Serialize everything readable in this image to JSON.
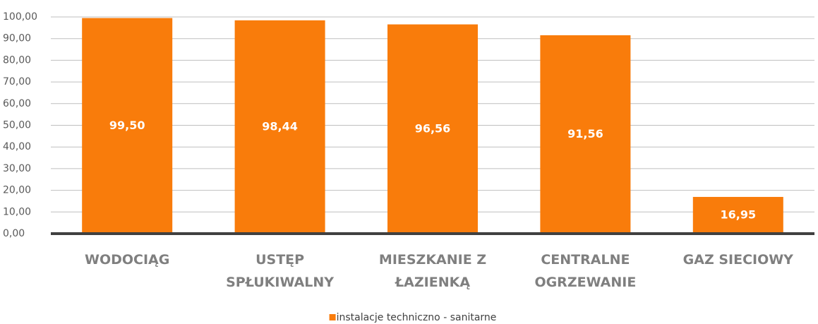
{
  "chart_data": {
    "type": "bar",
    "categories": [
      "WODOCIĄG",
      "USTĘP SPŁUKIWALNY",
      "MIESZKANIE Z ŁAZIENKĄ",
      "CENTRALNE OGRZEWANIE",
      "GAZ SIECIOWY"
    ],
    "series": [
      {
        "name": "instalacje techniczno - sanitarne",
        "color": "#f97c0b",
        "values": [
          99.5,
          98.44,
          96.56,
          91.56,
          16.95
        ],
        "value_labels": [
          "99,50",
          "98,44",
          "96,56",
          "91,56",
          "16,95"
        ]
      }
    ],
    "ylim": [
      0,
      100
    ],
    "yticks": [
      {
        "value": 0,
        "label": "0,00"
      },
      {
        "value": 10,
        "label": "10,00"
      },
      {
        "value": 20,
        "label": "20,00"
      },
      {
        "value": 30,
        "label": "30,00"
      },
      {
        "value": 40,
        "label": "40,00"
      },
      {
        "value": 50,
        "label": "50,00"
      },
      {
        "value": 60,
        "label": "60,00"
      },
      {
        "value": 70,
        "label": "70,00"
      },
      {
        "value": 80,
        "label": "80,00"
      },
      {
        "value": 90,
        "label": "90,00"
      },
      {
        "value": 100,
        "label": "100,00"
      }
    ],
    "grid": true,
    "legend": "bottom"
  }
}
